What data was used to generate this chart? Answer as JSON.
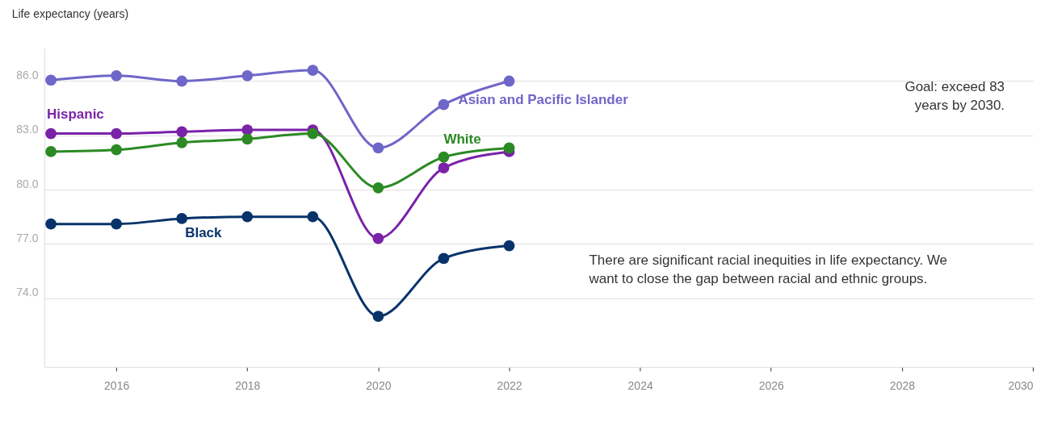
{
  "chart_data": {
    "type": "line",
    "ylabel": "Life expectancy (years)",
    "x": [
      2015,
      2016,
      2017,
      2018,
      2019,
      2020,
      2021,
      2022
    ],
    "series": [
      {
        "name": "Asian and Pacific Islander",
        "color": "#6f66c9",
        "values": [
          86.05,
          86.3,
          86.0,
          86.3,
          86.6,
          82.3,
          84.7,
          86.0
        ]
      },
      {
        "name": "Hispanic",
        "color": "#7a22a8",
        "values": [
          83.1,
          83.1,
          83.2,
          83.3,
          83.3,
          77.3,
          81.2,
          82.1
        ]
      },
      {
        "name": "White",
        "color": "#2b8a24",
        "values": [
          82.1,
          82.2,
          82.6,
          82.8,
          83.1,
          80.1,
          81.8,
          82.3
        ]
      },
      {
        "name": "Black",
        "color": "#07336a",
        "values": [
          78.1,
          78.1,
          78.4,
          78.5,
          78.5,
          73.0,
          76.2,
          76.9
        ]
      }
    ],
    "xlim": [
      2014.9,
      2030
    ],
    "xticks": [
      2016,
      2018,
      2020,
      2022,
      2024,
      2026,
      2028,
      2030
    ],
    "ylim": [
      70.2,
      87.8
    ],
    "yticks": [
      {
        "value": 74,
        "label": "74.0"
      },
      {
        "value": 77,
        "label": "77.0"
      },
      {
        "value": 80,
        "label": "80.0"
      },
      {
        "value": 83,
        "label": "83.0"
      },
      {
        "value": 86,
        "label": "86.0"
      }
    ],
    "grid": "y",
    "marker": "circle",
    "line_style": "solid",
    "annotations": [
      "Goal: exceed 83 years by 2030.",
      "There are significant racial inequities in life expectancy. We want to close the gap between racial and ethnic groups."
    ]
  }
}
